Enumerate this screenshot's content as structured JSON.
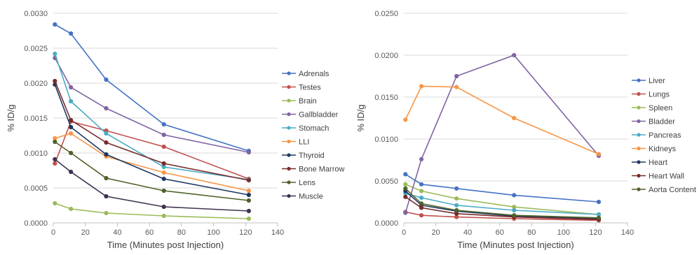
{
  "chart_data": [
    {
      "type": "line",
      "title": "",
      "xlabel": "Time (Minutes post Injection)",
      "ylabel": "% ID/g",
      "xlim": [
        0,
        140
      ],
      "ylim": [
        0,
        0.003
      ],
      "xticks": [
        0,
        20,
        40,
        60,
        80,
        100,
        120,
        140
      ],
      "xtick_labels": [
        "0",
        "20",
        "40",
        "60",
        "80",
        "100",
        "120",
        "140"
      ],
      "yticks": [
        0,
        0.0005,
        0.001,
        0.0015,
        0.002,
        0.0025,
        0.003
      ],
      "ytick_labels": [
        "0.0000",
        "0.0005",
        "0.0010",
        "0.0015",
        "0.0020",
        "0.0025",
        "0.0030"
      ],
      "grid": "horizontal",
      "legend": "right",
      "x": [
        1,
        11,
        33,
        69,
        122
      ],
      "series": [
        {
          "name": "Adrenals",
          "color": "#4472c4",
          "values": [
            0.00284,
            0.00271,
            0.00205,
            0.00141,
            0.00103
          ]
        },
        {
          "name": "Testes",
          "color": "#c0504d",
          "values": [
            0.00085,
            0.00145,
            0.00132,
            0.00109,
            0.00063
          ]
        },
        {
          "name": "Brain",
          "color": "#9bbb59",
          "values": [
            0.00028,
            0.0002,
            0.00014,
            0.0001,
            6e-05
          ]
        },
        {
          "name": "Gallbladder",
          "color": "#8064a2",
          "values": [
            0.00236,
            0.00194,
            0.00164,
            0.00126,
            0.00101
          ]
        },
        {
          "name": "Stomach",
          "color": "#4bacc6",
          "values": [
            0.00242,
            0.00174,
            0.00128,
            0.0008,
            0.00062
          ]
        },
        {
          "name": "LLI",
          "color": "#f79646",
          "values": [
            0.00121,
            0.00128,
            0.00095,
            0.00072,
            0.00046
          ]
        },
        {
          "name": "Thyroid",
          "color": "#1f3864",
          "values": [
            0.00198,
            0.00137,
            0.00098,
            0.00063,
            0.0004
          ]
        },
        {
          "name": "Bone Marrow",
          "color": "#772c2a",
          "values": [
            0.00203,
            0.00147,
            0.00115,
            0.00085,
            0.00061
          ]
        },
        {
          "name": "Lens",
          "color": "#4f6228",
          "values": [
            0.00116,
            0.001,
            0.00064,
            0.00046,
            0.00032
          ]
        },
        {
          "name": "Muscle",
          "color": "#3f3151",
          "values": [
            0.00091,
            0.00073,
            0.00038,
            0.00023,
            0.00017
          ]
        }
      ]
    },
    {
      "type": "line",
      "title": "",
      "xlabel": "Time (Minutes post Injection)",
      "ylabel": "% ID/g",
      "xlim": [
        0,
        140
      ],
      "ylim": [
        0,
        0.025
      ],
      "xticks": [
        0,
        20,
        40,
        60,
        80,
        100,
        120,
        140
      ],
      "xtick_labels": [
        "0",
        "20",
        "40",
        "60",
        "80",
        "100",
        "120",
        "140"
      ],
      "yticks": [
        0,
        0.005,
        0.01,
        0.015,
        0.02,
        0.025
      ],
      "ytick_labels": [
        "0.0000",
        "0.0050",
        "0.0100",
        "0.0150",
        "0.0200",
        "0.0250"
      ],
      "grid": "horizontal",
      "legend": "right",
      "x": [
        1,
        11,
        33,
        69,
        122
      ],
      "series": [
        {
          "name": "Liver",
          "color": "#4472c4",
          "values": [
            0.0058,
            0.0046,
            0.0041,
            0.0033,
            0.0025
          ]
        },
        {
          "name": "Lungs",
          "color": "#c0504d",
          "values": [
            0.0013,
            0.0009,
            0.0007,
            0.0005,
            0.0003
          ]
        },
        {
          "name": "Spleen",
          "color": "#9bbb59",
          "values": [
            0.0046,
            0.0038,
            0.0029,
            0.0019,
            0.001
          ]
        },
        {
          "name": "Bladder",
          "color": "#8064a2",
          "values": [
            0.0012,
            0.0076,
            0.0175,
            0.02,
            0.008
          ]
        },
        {
          "name": "Pancreas",
          "color": "#4bacc6",
          "values": [
            0.0035,
            0.003,
            0.0021,
            0.0015,
            0.001
          ]
        },
        {
          "name": "Kidneys",
          "color": "#f79646",
          "values": [
            0.0123,
            0.0163,
            0.0162,
            0.0125,
            0.0082
          ]
        },
        {
          "name": "Heart",
          "color": "#1f3864",
          "values": [
            0.0038,
            0.0021,
            0.0014,
            0.0008,
            0.0005
          ]
        },
        {
          "name": "Heart Wall",
          "color": "#772c2a",
          "values": [
            0.0031,
            0.0018,
            0.0011,
            0.0007,
            0.0004
          ]
        },
        {
          "name": "Aorta Content",
          "color": "#4f6228",
          "values": [
            0.0041,
            0.0023,
            0.0015,
            0.0009,
            0.0006
          ]
        }
      ]
    }
  ]
}
